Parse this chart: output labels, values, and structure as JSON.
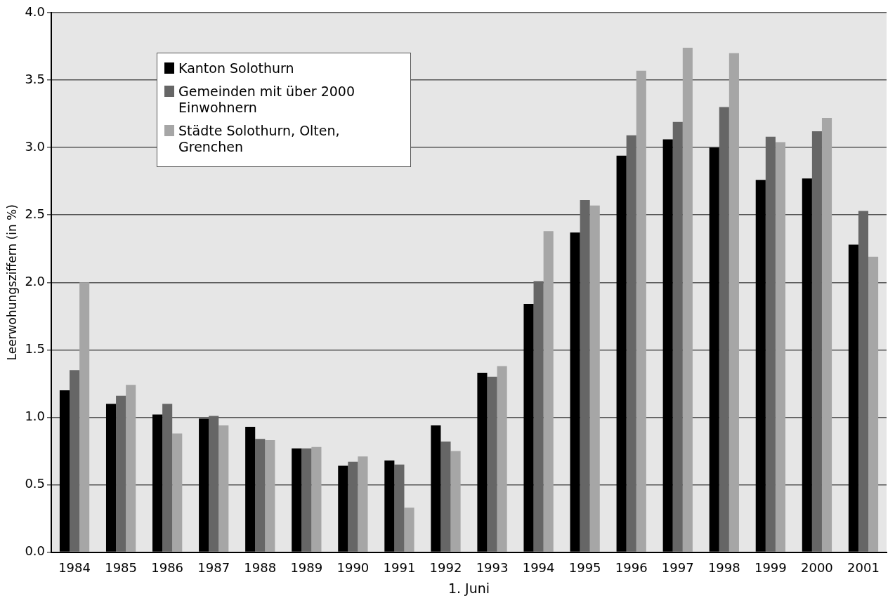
{
  "chart_data": {
    "type": "bar",
    "xlabel": "1. Juni",
    "ylabel": "Leerwohungsziffern (in %)",
    "categories": [
      "1984",
      "1985",
      "1986",
      "1987",
      "1988",
      "1989",
      "1990",
      "1991",
      "1992",
      "1993",
      "1994",
      "1995",
      "1996",
      "1997",
      "1998",
      "1999",
      "2000",
      "2001"
    ],
    "series": [
      {
        "name": "Kanton Solothurn",
        "color": "#000000",
        "values": [
          1.2,
          1.1,
          1.02,
          0.99,
          0.93,
          0.77,
          0.64,
          0.68,
          0.94,
          1.33,
          1.84,
          2.37,
          2.94,
          3.06,
          3.0,
          2.76,
          2.77,
          2.28
        ]
      },
      {
        "name": "Gemeinden mit über 2000 Einwohnern",
        "color": "#666666",
        "values": [
          1.35,
          1.16,
          1.1,
          1.01,
          0.84,
          0.77,
          0.67,
          0.65,
          0.82,
          1.3,
          2.01,
          2.61,
          3.09,
          3.19,
          3.3,
          3.08,
          3.12,
          2.53
        ]
      },
      {
        "name": "Städte Solothurn, Olten, Grenchen",
        "color": "#a6a6a6",
        "values": [
          2.0,
          1.24,
          0.88,
          0.94,
          0.83,
          0.78,
          0.71,
          0.33,
          0.75,
          1.38,
          2.38,
          2.57,
          3.57,
          3.74,
          3.7,
          3.04,
          3.22,
          2.19
        ]
      }
    ],
    "ylim": [
      0,
      4
    ],
    "yticks": [
      {
        "value": 0,
        "label": "0.0"
      },
      {
        "value": 0.5,
        "label": "0.5"
      },
      {
        "value": 1,
        "label": "1.0"
      },
      {
        "value": 1.5,
        "label": "1.5"
      },
      {
        "value": 2,
        "label": "2.0"
      },
      {
        "value": 2.5,
        "label": "2.5"
      },
      {
        "value": 3,
        "label": "3.0"
      },
      {
        "value": 3.5,
        "label": "3.5"
      },
      {
        "value": 4,
        "label": "4.0"
      }
    ],
    "grid": "y",
    "legend": "top left"
  }
}
